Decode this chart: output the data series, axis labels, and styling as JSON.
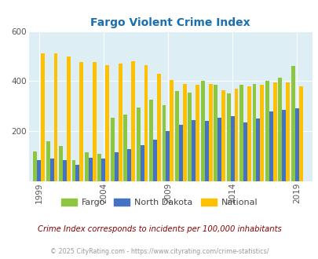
{
  "title": "Fargo Violent Crime Index",
  "title_color": "#1a6faf",
  "subtitle": "Crime Index corresponds to incidents per 100,000 inhabitants",
  "copyright": "© 2025 CityRating.com - https://www.cityrating.com/crime-statistics/",
  "years": [
    1999,
    2000,
    2001,
    2002,
    2003,
    2004,
    2005,
    2006,
    2007,
    2008,
    2009,
    2010,
    2011,
    2012,
    2013,
    2014,
    2015,
    2016,
    2017,
    2018,
    2019,
    2020
  ],
  "fargo": [
    120,
    160,
    140,
    85,
    115,
    110,
    255,
    265,
    295,
    325,
    305,
    360,
    355,
    400,
    385,
    350,
    385,
    390,
    400,
    415,
    460,
    null
  ],
  "north_dakota": [
    85,
    90,
    85,
    65,
    95,
    90,
    115,
    130,
    145,
    165,
    200,
    225,
    245,
    240,
    255,
    260,
    235,
    250,
    280,
    285,
    290,
    null
  ],
  "national": [
    510,
    510,
    500,
    475,
    475,
    465,
    470,
    480,
    465,
    430,
    405,
    390,
    385,
    390,
    365,
    370,
    380,
    385,
    395,
    395,
    380,
    null
  ],
  "fargo_color": "#8dc63f",
  "nd_color": "#4472c4",
  "national_color": "#ffc000",
  "bg_color": "#ddeef5",
  "ylim": [
    0,
    600
  ],
  "yticks": [
    200,
    400,
    600
  ],
  "xtick_labels": [
    "1999",
    "2004",
    "2009",
    "2014",
    "2019"
  ],
  "xtick_positions": [
    1999,
    2004,
    2009,
    2014,
    2019
  ],
  "subtitle_color": "#8b0000",
  "copyright_color": "#999999"
}
